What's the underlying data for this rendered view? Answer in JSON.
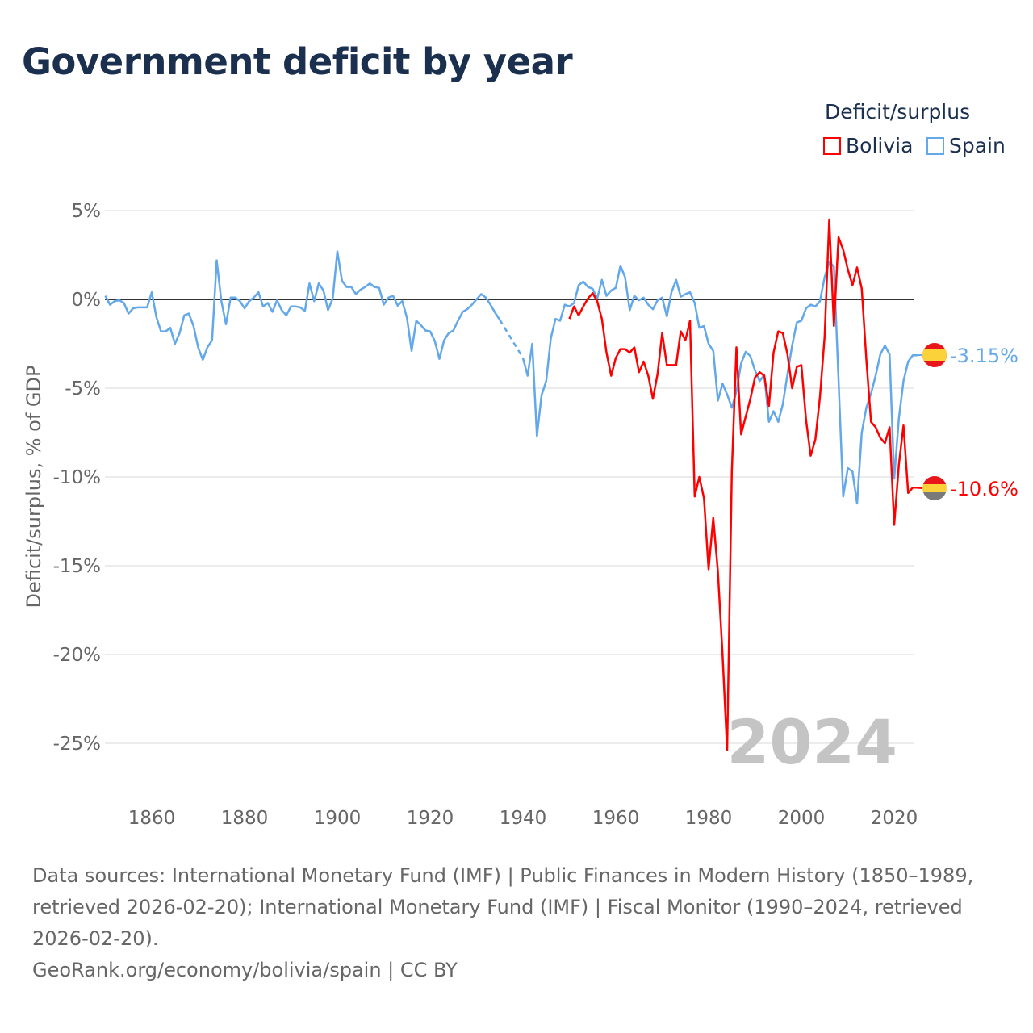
{
  "title": "Government deficit by year",
  "legend": {
    "title": "Deficit/surplus",
    "items": [
      {
        "label": "Bolivia",
        "color": "#ff0000"
      },
      {
        "label": "Spain",
        "color": "#62a8ea"
      }
    ]
  },
  "footer": {
    "sources": "Data sources: International Monetary Fund (IMF) | Public Finances in Modern History (1850–1989, retrieved 2026-02-20); International Monetary Fund (IMF) | Fiscal Monitor (1990–2024, retrieved 2026-02-20).",
    "credit": "GeoRank.org/economy/bolivia/spain | CC BY"
  },
  "chart_data": {
    "type": "line",
    "title": "Government deficit by year",
    "ylabel": "Deficit/surplus, % of GDP",
    "xlabel": "",
    "xlim": [
      1850,
      2024
    ],
    "ylim": [
      -27.5,
      5
    ],
    "yticks": [
      5,
      0,
      -5,
      -10,
      -15,
      -20,
      -25
    ],
    "ytick_labels": [
      "5%",
      "0%",
      "-5%",
      "-10%",
      "-15%",
      "-20%",
      "-25%"
    ],
    "xticks": [
      1860,
      1880,
      1900,
      1920,
      1940,
      1960,
      1980,
      2000,
      2020
    ],
    "xtick_labels": [
      "1860",
      "1880",
      "1900",
      "1920",
      "1940",
      "1960",
      "1980",
      "2000",
      "2020"
    ],
    "year_watermark": "2024",
    "legend_position": "top-right",
    "series": [
      {
        "name": "Spain",
        "color": "#62a8ea",
        "end_label": "-3.15%",
        "flag": "spain",
        "start_year": 1850,
        "values": [
          0.2,
          -0.3,
          -0.1,
          -0.05,
          -0.2,
          -0.8,
          -0.5,
          -0.45,
          -0.45,
          -0.45,
          0.4,
          -1.0,
          -1.8,
          -1.8,
          -1.6,
          -2.5,
          -1.9,
          -0.9,
          -0.8,
          -1.5,
          -2.7,
          -3.4,
          -2.7,
          -2.3,
          2.2,
          -0.1,
          -1.4,
          0.1,
          0.1,
          -0.1,
          -0.5,
          -0.1,
          0.1,
          0.4,
          -0.4,
          -0.2,
          -0.7,
          -0.05,
          -0.6,
          -0.9,
          -0.4,
          -0.4,
          -0.45,
          -0.65,
          0.9,
          -0.1,
          0.9,
          0.5,
          -0.6,
          0.05,
          2.7,
          1.05,
          0.7,
          0.7,
          0.3,
          0.55,
          0.7,
          0.9,
          0.7,
          0.65,
          -0.3,
          0.1,
          0.2,
          -0.35,
          -0.1,
          -1.05,
          -2.9,
          -1.2,
          -1.45,
          -1.75,
          -1.8,
          -2.35,
          -3.35,
          -2.3,
          -1.9,
          -1.75,
          -1.2,
          -0.7,
          -0.55,
          -0.3,
          0,
          0.3,
          0.1,
          -0.3,
          -0.75,
          -1.15,
          null,
          null,
          null,
          null,
          -3.3,
          -4.3,
          -2.5,
          -7.7,
          -5.4,
          -4.6,
          -2.2,
          -1.1,
          -1.2,
          -0.3,
          -0.4,
          -0.2,
          0.8,
          1.0,
          0.7,
          0.6,
          0.05,
          1.1,
          0.2,
          0.5,
          0.65,
          1.9,
          1.25,
          -0.6,
          0.2,
          -0.05,
          0.1,
          -0.3,
          -0.55,
          -0.05,
          0.1,
          -0.95,
          0.4,
          1.1,
          0.15,
          0.3,
          0.4,
          -0.2,
          -1.6,
          -1.5,
          -2.5,
          -2.9,
          -5.7,
          -4.75,
          -5.35,
          -6.1,
          -5.2,
          -3.6,
          -2.95,
          -3.2,
          -4.0,
          -4.6,
          -4.25,
          -6.9,
          -6.3,
          -6.9,
          -5.9,
          -4.2,
          -2.6,
          -1.3,
          -1.2,
          -0.5,
          -0.3,
          -0.4,
          -0.1,
          1.25,
          2.1,
          1.85,
          -4.5,
          -11.1,
          -9.5,
          -9.7,
          -11.5,
          -7.5,
          -6.1,
          -5.3,
          -4.3,
          -3.1,
          -2.6,
          -3.1,
          -10.1,
          -6.7,
          -4.6,
          -3.5,
          -3.15,
          -3.15
        ],
        "dashed_gaps": [
          [
            1935,
            1940
          ]
        ]
      },
      {
        "name": "Bolivia",
        "color": "#ff0000",
        "end_label": "-10.6%",
        "flag": "bolivia",
        "start_year": 1950,
        "values": [
          -1.1,
          -0.4,
          -0.9,
          -0.4,
          0.05,
          0.35,
          -0.1,
          -1.1,
          -3.0,
          -4.3,
          -3.3,
          -2.8,
          -2.8,
          -3.0,
          -2.7,
          -4.1,
          -3.5,
          -4.3,
          -5.6,
          -4.2,
          -1.9,
          -3.7,
          -3.7,
          -3.7,
          -1.8,
          -2.3,
          -1.2,
          -11.1,
          -10.0,
          -11.2,
          -15.2,
          -12.3,
          -15.3,
          -20.0,
          -25.4,
          -9.7,
          -2.7,
          -7.6,
          -6.6,
          -5.6,
          -4.4,
          -4.1,
          -4.3,
          -6.0,
          -3.0,
          -1.8,
          -1.9,
          -3.1,
          -5.0,
          -3.8,
          -3.7,
          -6.8,
          -8.8,
          -7.9,
          -5.5,
          -2.1,
          4.5,
          -1.5,
          3.5,
          2.8,
          1.7,
          0.8,
          1.8,
          0.6,
          -3.4,
          -6.9,
          -7.2,
          -7.8,
          -8.1,
          -7.2,
          -12.7,
          -9.3,
          -7.1,
          -10.9,
          -10.6
        ]
      }
    ]
  }
}
